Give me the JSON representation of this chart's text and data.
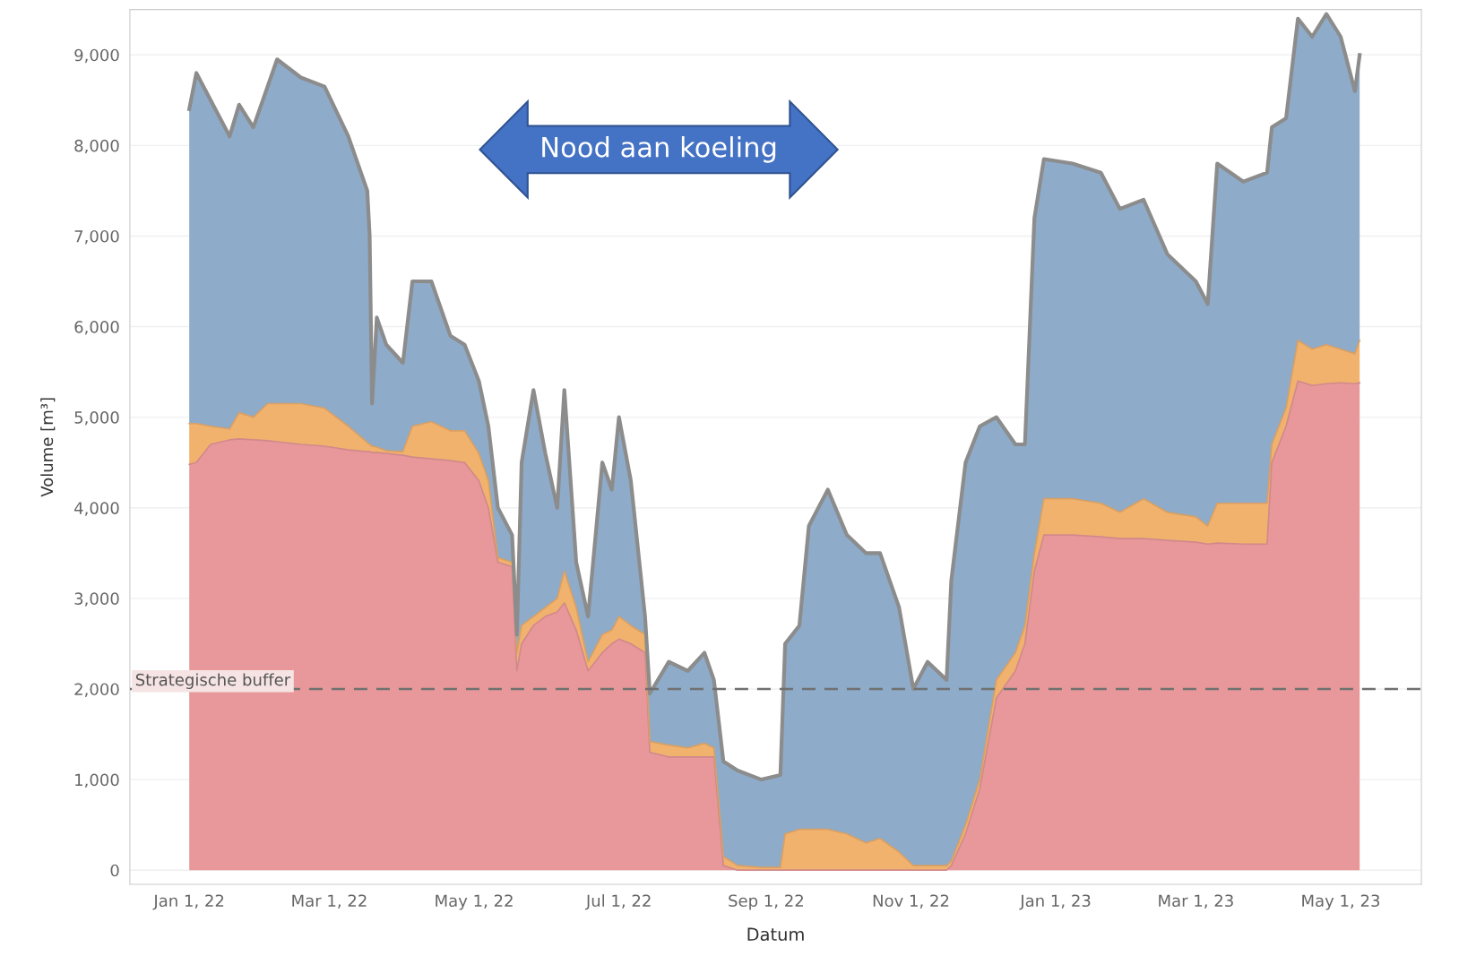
{
  "chart_data": {
    "type": "area",
    "stacked": true,
    "xlabel": "Datum",
    "ylabel": "Volume [m³]",
    "x": [
      "2022-01-01",
      "2022-01-04",
      "2022-01-10",
      "2022-01-18",
      "2022-01-22",
      "2022-01-28",
      "2022-02-03",
      "2022-02-07",
      "2022-02-17",
      "2022-02-27",
      "2022-03-09",
      "2022-03-17",
      "2022-03-18",
      "2022-03-19",
      "2022-03-21",
      "2022-03-25",
      "2022-04-01",
      "2022-04-05",
      "2022-04-13",
      "2022-04-21",
      "2022-04-27",
      "2022-05-03",
      "2022-05-07",
      "2022-05-11",
      "2022-05-17",
      "2022-05-19",
      "2022-05-21",
      "2022-05-26",
      "2022-05-31",
      "2022-06-05",
      "2022-06-08",
      "2022-06-13",
      "2022-06-18",
      "2022-06-24",
      "2022-06-28",
      "2022-07-01",
      "2022-07-06",
      "2022-07-12",
      "2022-07-14",
      "2022-07-22",
      "2022-07-30",
      "2022-08-06",
      "2022-08-10",
      "2022-08-14",
      "2022-08-20",
      "2022-08-30",
      "2022-09-07",
      "2022-09-09",
      "2022-09-15",
      "2022-09-19",
      "2022-09-27",
      "2022-10-05",
      "2022-10-13",
      "2022-10-19",
      "2022-10-27",
      "2022-11-02",
      "2022-11-08",
      "2022-11-16",
      "2022-11-18",
      "2022-11-24",
      "2022-11-30",
      "2022-12-07",
      "2022-12-15",
      "2022-12-19",
      "2022-12-23",
      "2022-12-27",
      "2023-01-08",
      "2023-01-20",
      "2023-01-28",
      "2023-02-07",
      "2023-02-17",
      "2023-03-01",
      "2023-03-06",
      "2023-03-10",
      "2023-03-21",
      "2023-03-31",
      "2023-04-02",
      "2023-04-08",
      "2023-04-13",
      "2023-04-19",
      "2023-04-25",
      "2023-05-01",
      "2023-05-07",
      "2023-05-09"
    ],
    "series": [
      {
        "color": "#e8989a",
        "values": [
          4480,
          4500,
          4700,
          4750,
          4760,
          4750,
          4740,
          4730,
          4700,
          4680,
          4640,
          4620,
          4620,
          4610,
          4610,
          4600,
          4580,
          4560,
          4540,
          4520,
          4500,
          4300,
          4000,
          3400,
          3350,
          2200,
          2500,
          2700,
          2800,
          2850,
          2950,
          2650,
          2200,
          2400,
          2500,
          2550,
          2500,
          2400,
          1300,
          1250,
          1250,
          1250,
          1250,
          50,
          0,
          0,
          0,
          0,
          0,
          0,
          0,
          0,
          0,
          0,
          0,
          0,
          0,
          0,
          50,
          400,
          900,
          1900,
          2200,
          2500,
          3300,
          3700,
          3700,
          3680,
          3660,
          3660,
          3640,
          3620,
          3600,
          3610,
          3600,
          3600,
          4500,
          4900,
          5400,
          5350,
          5370,
          5380,
          5370,
          5380
        ]
      },
      {
        "color": "#f1b26e",
        "values": [
          450,
          430,
          200,
          120,
          290,
          250,
          410,
          420,
          450,
          420,
          260,
          100,
          80,
          70,
          60,
          30,
          40,
          340,
          410,
          330,
          350,
          300,
          300,
          50,
          50,
          200,
          200,
          100,
          100,
          150,
          350,
          250,
          100,
          200,
          150,
          250,
          200,
          200,
          120,
          130,
          100,
          150,
          100,
          100,
          50,
          30,
          30,
          400,
          450,
          450,
          450,
          400,
          300,
          350,
          200,
          50,
          50,
          50,
          50,
          100,
          100,
          200,
          200,
          200,
          200,
          400,
          400,
          370,
          290,
          440,
          310,
          280,
          200,
          440,
          450,
          450,
          200,
          200,
          450,
          400,
          430,
          370,
          330,
          470
        ]
      },
      {
        "color": "#8eabc9",
        "values": [
          3470,
          3870,
          3600,
          3230,
          3400,
          3200,
          3500,
          3800,
          3600,
          3550,
          3200,
          2780,
          2300,
          470,
          1430,
          1170,
          980,
          1600,
          1550,
          1050,
          950,
          800,
          600,
          550,
          300,
          200,
          1800,
          2500,
          1700,
          1000,
          2000,
          500,
          500,
          1900,
          1550,
          2200,
          1600,
          200,
          530,
          920,
          850,
          1000,
          750,
          1050,
          1050,
          970,
          1020,
          2100,
          2250,
          3350,
          3750,
          3300,
          3200,
          3150,
          2700,
          1950,
          2250,
          2050,
          3100,
          4000,
          3900,
          2900,
          2300,
          2000,
          3700,
          3750,
          3700,
          3650,
          3350,
          3300,
          2850,
          2600,
          2450,
          3750,
          3550,
          3650,
          3500,
          3200,
          3550,
          3450,
          3650,
          3450,
          2900,
          3150
        ]
      }
    ],
    "xlim": [
      "2021-12-07",
      "2023-06-04"
    ],
    "xticks": [
      {
        "value": "2022-01-01",
        "label": "Jan 1, 22"
      },
      {
        "value": "2022-03-01",
        "label": "Mar 1, 22"
      },
      {
        "value": "2022-05-01",
        "label": "May 1, 22"
      },
      {
        "value": "2022-07-01",
        "label": "Jul 1, 22"
      },
      {
        "value": "2022-09-01",
        "label": "Sep 1, 22"
      },
      {
        "value": "2022-11-01",
        "label": "Nov 1, 22"
      },
      {
        "value": "2023-01-01",
        "label": "Jan 1, 23"
      },
      {
        "value": "2023-03-01",
        "label": "Mar 1, 23"
      },
      {
        "value": "2023-05-01",
        "label": "May 1, 23"
      }
    ],
    "ylim": [
      -156,
      9500
    ],
    "yticks": [
      0,
      {
        "value": 1000,
        "label": "1,000"
      },
      {
        "value": 2000,
        "label": "2,000"
      },
      {
        "value": 3000,
        "label": "3,000"
      },
      {
        "value": 4000,
        "label": "4,000"
      },
      {
        "value": 5000,
        "label": "5,000"
      },
      {
        "value": 6000,
        "label": "6,000"
      },
      {
        "value": 7000,
        "label": "7,000"
      },
      {
        "value": 8000,
        "label": "8,000"
      },
      {
        "value": 9000,
        "label": "9,000"
      }
    ],
    "grid": "y",
    "ref_lines": [
      {
        "axis": "y",
        "value": 2000,
        "label": "Strategische buffer",
        "color": "#707070",
        "line_style": "dashed"
      }
    ],
    "annotations": [
      "Nood aan koeling"
    ]
  }
}
